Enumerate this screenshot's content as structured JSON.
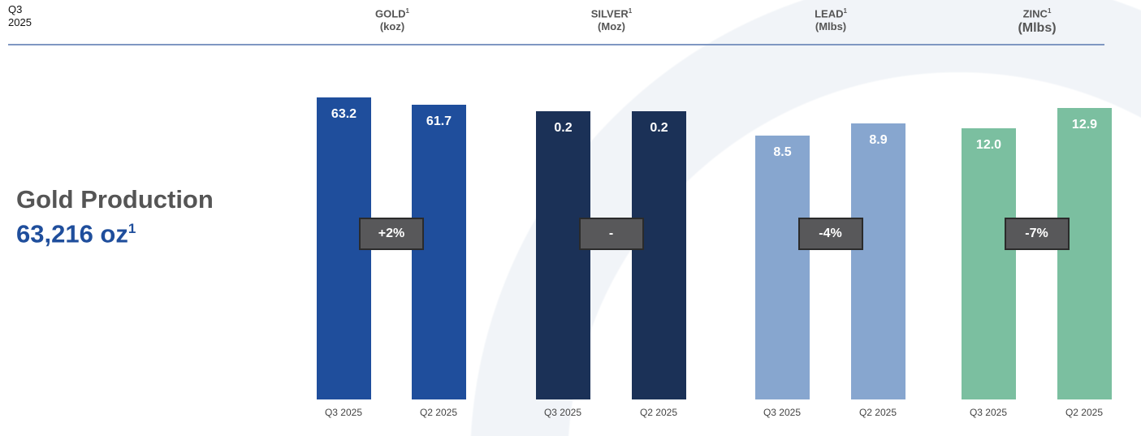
{
  "period": {
    "quarter": "Q3",
    "year": "2025"
  },
  "kpi": {
    "title": "Gold Production",
    "value": "63,216 oz",
    "footnote": "1"
  },
  "chart_data": {
    "type": "bar",
    "categories": [
      "Q3 2025",
      "Q2 2025"
    ],
    "groups": [
      {
        "name": "GOLD",
        "unit": "(koz)",
        "footnote": "1",
        "values": [
          63.2,
          61.7
        ],
        "labels": [
          "63.2",
          "61.7"
        ],
        "change": "+2%",
        "color": "#1f4e9c"
      },
      {
        "name": "SILVER",
        "unit": "(Moz)",
        "footnote": "1",
        "values": [
          0.2,
          0.2
        ],
        "labels": [
          "0.2",
          "0.2"
        ],
        "change": "-",
        "color": "#1b3157"
      },
      {
        "name": "LEAD",
        "unit": "(Mlbs)",
        "footnote": "1",
        "values": [
          8.5,
          8.9
        ],
        "labels": [
          "8.5",
          "8.9"
        ],
        "change": "-4%",
        "color": "#87a6cf"
      },
      {
        "name": "ZINC",
        "unit": "(Mlbs)",
        "footnote": "1",
        "values": [
          12.0,
          12.9
        ],
        "labels": [
          "12.0",
          "12.9"
        ],
        "change": "-7%",
        "color": "#7bbfa0"
      }
    ]
  }
}
